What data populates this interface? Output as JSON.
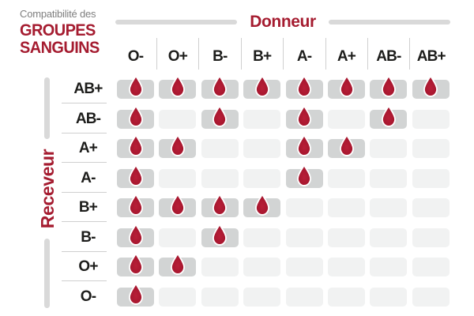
{
  "brand": {
    "subtitle": "Compatibilité des",
    "title_line1": "GROUPES",
    "title_line2": "SANGUINS"
  },
  "axes": {
    "donor_label": "Donneur",
    "receiver_label": "Receveur"
  },
  "icons": {
    "compatible": "blood-drop-icon"
  },
  "colors": {
    "accent_red": "#a51c30",
    "drop_red_center": "#b81f38",
    "drop_red_edge": "#9d1229",
    "drop_stroke": "#ffffff",
    "cell_filled_gray": "#d2d4d4",
    "cell_empty_gray": "#f1f2f2",
    "axis_bar_gray": "#d9d9d9",
    "divider_gray": "#cfcfcf",
    "label_dark": "#1d1d1b",
    "subtitle_gray": "#7f7f7f",
    "background": "#ffffff"
  },
  "chart_data": {
    "type": "heatmap",
    "title": "Compatibilité des GROUPES SANGUINS",
    "x_axis_label": "Donneur",
    "y_axis_label": "Receveur",
    "columns": [
      "O-",
      "O+",
      "B-",
      "B+",
      "A-",
      "A+",
      "AB-",
      "AB+"
    ],
    "rows": [
      "AB+",
      "AB-",
      "A+",
      "A-",
      "B+",
      "B-",
      "O+",
      "O-"
    ],
    "matrix": [
      [
        1,
        1,
        1,
        1,
        1,
        1,
        1,
        1
      ],
      [
        1,
        0,
        1,
        0,
        1,
        0,
        1,
        0
      ],
      [
        1,
        1,
        0,
        0,
        1,
        1,
        0,
        0
      ],
      [
        1,
        0,
        0,
        0,
        1,
        0,
        0,
        0
      ],
      [
        1,
        1,
        1,
        1,
        0,
        0,
        0,
        0
      ],
      [
        1,
        0,
        1,
        0,
        0,
        0,
        0,
        0
      ],
      [
        1,
        1,
        0,
        0,
        0,
        0,
        0,
        0
      ],
      [
        1,
        0,
        0,
        0,
        0,
        0,
        0,
        0
      ]
    ],
    "cell_meaning": "1 = blood-drop icon shown (donor compatible with receiver), 0 = empty cell",
    "legend_position": "none",
    "grid": "rounded cells, gray when compatible, pale gray when not"
  }
}
